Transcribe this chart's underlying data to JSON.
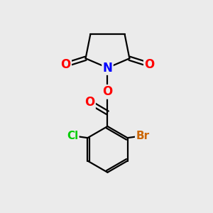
{
  "bg_color": "#ebebeb",
  "atom_colors": {
    "C": "#000000",
    "N": "#0000ff",
    "O": "#ff0000",
    "Cl": "#00cc00",
    "Br": "#cc6600"
  },
  "bond_color": "#000000",
  "bond_width": 1.6,
  "figsize": [
    3.0,
    3.0
  ],
  "dpi": 100
}
